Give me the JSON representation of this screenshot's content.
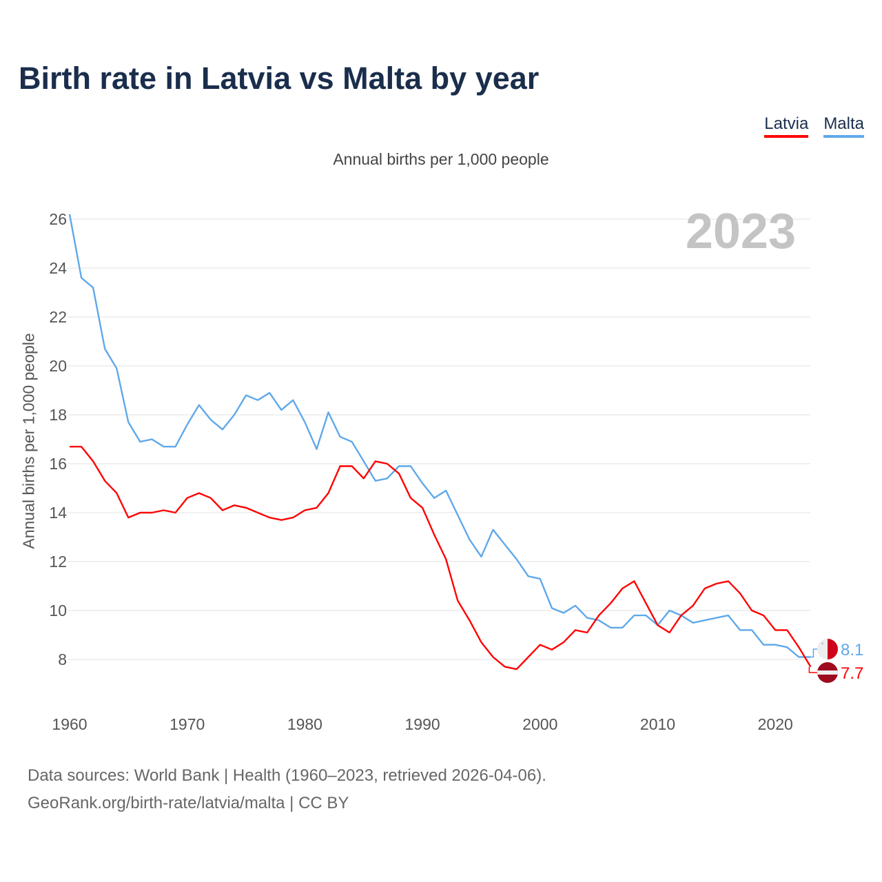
{
  "chart_data": {
    "type": "line",
    "title": "Birth rate in Latvia vs Malta by year",
    "subtitle": "Annual births per 1,000 people",
    "ylabel": "Annual births per 1,000 people",
    "xlabel": "",
    "year_label": "2023",
    "ylim": [
      6.5,
      26.4
    ],
    "xlim": [
      1960,
      2023
    ],
    "yticks": [
      8,
      10,
      12,
      14,
      16,
      18,
      20,
      22,
      24,
      26
    ],
    "xticks": [
      1960,
      1970,
      1980,
      1990,
      2000,
      2010,
      2020
    ],
    "grid": true,
    "legend_position": "top-right",
    "x": [
      1960,
      1961,
      1962,
      1963,
      1964,
      1965,
      1966,
      1967,
      1968,
      1969,
      1970,
      1971,
      1972,
      1973,
      1974,
      1975,
      1976,
      1977,
      1978,
      1979,
      1980,
      1981,
      1982,
      1983,
      1984,
      1985,
      1986,
      1987,
      1988,
      1989,
      1990,
      1991,
      1992,
      1993,
      1994,
      1995,
      1996,
      1997,
      1998,
      1999,
      2000,
      2001,
      2002,
      2003,
      2004,
      2005,
      2006,
      2007,
      2008,
      2009,
      2010,
      2011,
      2012,
      2013,
      2014,
      2015,
      2016,
      2017,
      2018,
      2019,
      2020,
      2021,
      2022,
      2023
    ],
    "series": [
      {
        "name": "Latvia",
        "color": "#ff0000",
        "end_label": "7.7",
        "values": [
          16.7,
          16.7,
          16.1,
          15.3,
          14.8,
          13.8,
          14.0,
          14.0,
          14.1,
          14.0,
          14.6,
          14.8,
          14.6,
          14.1,
          14.3,
          14.2,
          14.0,
          13.8,
          13.7,
          13.8,
          14.1,
          14.2,
          14.8,
          15.9,
          15.9,
          15.4,
          16.1,
          16.0,
          15.6,
          14.6,
          14.2,
          13.1,
          12.1,
          10.4,
          9.6,
          8.7,
          8.1,
          7.7,
          7.6,
          8.1,
          8.6,
          8.4,
          8.7,
          9.2,
          9.1,
          9.8,
          10.3,
          10.9,
          11.2,
          10.3,
          9.4,
          9.1,
          9.8,
          10.2,
          10.9,
          11.1,
          11.2,
          10.7,
          10.0,
          9.8,
          9.2,
          9.2,
          8.5,
          7.7
        ]
      },
      {
        "name": "Malta",
        "color": "#5fa8ea",
        "end_label": "8.1",
        "values": [
          26.2,
          23.6,
          23.2,
          20.7,
          19.9,
          17.7,
          16.9,
          17.0,
          16.7,
          16.7,
          17.6,
          18.4,
          17.8,
          17.4,
          18.0,
          18.8,
          18.6,
          18.9,
          18.2,
          18.6,
          17.7,
          16.6,
          18.1,
          17.1,
          16.9,
          16.1,
          15.3,
          15.4,
          15.9,
          15.9,
          15.2,
          14.6,
          14.9,
          13.9,
          12.9,
          12.2,
          13.3,
          12.7,
          12.1,
          11.4,
          11.3,
          10.1,
          9.9,
          10.2,
          9.7,
          9.6,
          9.3,
          9.3,
          9.8,
          9.8,
          9.4,
          10.0,
          9.8,
          9.5,
          9.6,
          9.7,
          9.8,
          9.2,
          9.2,
          8.6,
          8.6,
          8.5,
          8.1,
          8.1
        ]
      }
    ]
  },
  "source": {
    "line1": "Data sources: World Bank | Health (1960–2023, retrieved 2026-04-06).",
    "line2": "GeoRank.org/birth-rate/latvia/malta | CC BY"
  }
}
